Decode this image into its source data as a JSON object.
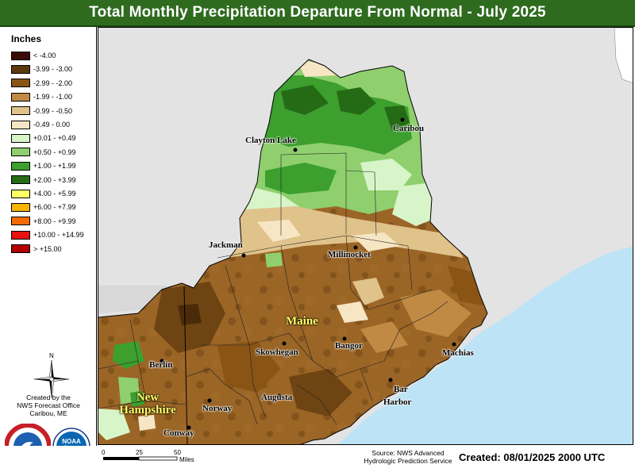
{
  "title": "Total Monthly Precipitation Departure From Normal - July 2025",
  "legend": {
    "title": "Inches",
    "items": [
      {
        "label": "< -4.00",
        "color": "#3d0a07"
      },
      {
        "label": "-3.99 - -3.00",
        "color": "#5c3a0e"
      },
      {
        "label": "-2.99 - -2.00",
        "color": "#8a5415"
      },
      {
        "label": "-1.99 - -1.00",
        "color": "#c08a45"
      },
      {
        "label": "-0.99 - -0.50",
        "color": "#e0c28b"
      },
      {
        "label": "-0.49 - 0.00",
        "color": "#f7e6c4"
      },
      {
        "label": "+0.01 - +0.49",
        "color": "#d7f5c8"
      },
      {
        "label": "+0.50 - +0.99",
        "color": "#8fcf6e"
      },
      {
        "label": "+1.00 - +1.99",
        "color": "#3c9f2e"
      },
      {
        "label": "+2.00 - +3.99",
        "color": "#256b16"
      },
      {
        "label": "+4.00 - +5.99",
        "color": "#ffff66"
      },
      {
        "label": "+6.00 - +7.99",
        "color": "#f7b400"
      },
      {
        "label": "+8.00 - +9.99",
        "color": "#f56a00"
      },
      {
        "label": "+10.00 - +14.99",
        "color": "#e81010"
      },
      {
        "label": "> +15.00",
        "color": "#b00000"
      }
    ]
  },
  "north_label": "N",
  "credit": [
    "Created by the",
    "NWS Forecast Office",
    "Caribou, ME"
  ],
  "logos": {
    "nws": "national-weather-service-logo",
    "noaa": "noaa-logo",
    "noaa_text": "NOAA"
  },
  "cities": [
    {
      "name": "Caribou"
    },
    {
      "name": "Clayton Lake"
    },
    {
      "name": "Jackman"
    },
    {
      "name": "Millinocket"
    },
    {
      "name": "Skowhegan"
    },
    {
      "name": "Bangor"
    },
    {
      "name": "Machias"
    },
    {
      "name": "Augusta"
    },
    {
      "name": "Bar"
    },
    {
      "name": "Harbor"
    },
    {
      "name": "Berlin"
    },
    {
      "name": "Norway"
    },
    {
      "name": "Conway"
    }
  ],
  "states": {
    "maine": "Maine",
    "nh_line1": "New",
    "nh_line2": "Hampshire"
  },
  "scale": {
    "ticks": [
      "0",
      "25",
      "50"
    ],
    "unit": "Miles"
  },
  "source": [
    "Source: NWS Advanced",
    "Hydrologic Prediction Service"
  ],
  "created": "Created: 08/01/2025 2000 UTC"
}
